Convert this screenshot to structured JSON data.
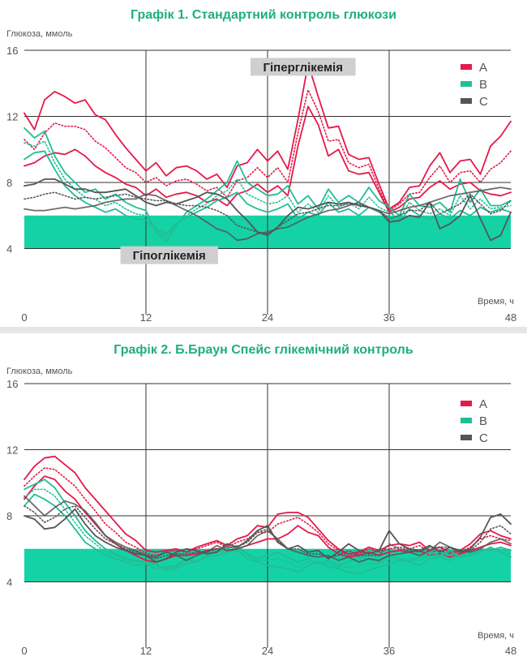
{
  "colors": {
    "A": "#e5194a",
    "B": "#1fbf95",
    "C": "#555555",
    "target_band": "#14d2a6"
  },
  "chart_data": [
    {
      "type": "line",
      "title": "Графік 1. Стандартний контроль глюкози",
      "ylabel": "Глюкоза, ммоль",
      "xlabel": "Время, ч",
      "xlim": [
        0,
        48
      ],
      "ylim": [
        0,
        16
      ],
      "xticks": [
        "0",
        "12",
        "24",
        "36",
        "48"
      ],
      "yticks": [
        "16",
        "12",
        "8",
        "4"
      ],
      "grid": true,
      "legend_position": "top-right",
      "legend": [
        "A",
        "B",
        "C"
      ],
      "target_band": [
        4,
        6
      ],
      "annotations": [
        {
          "text": "Гіперглікемія",
          "x": 27.5,
          "y": 15
        },
        {
          "text": "Гіпоглікемія",
          "x": 14.3,
          "y": 3.6
        }
      ],
      "x": [
        0,
        1,
        2,
        3,
        4,
        5,
        6,
        7,
        8,
        9,
        10,
        11,
        12,
        13,
        14,
        15,
        16,
        17,
        18,
        19,
        20,
        21,
        22,
        23,
        24,
        25,
        26,
        27,
        28,
        29,
        30,
        31,
        32,
        33,
        34,
        35,
        36,
        37,
        38,
        39,
        40,
        41,
        42,
        43,
        44,
        45,
        46,
        47,
        48
      ],
      "series": [
        {
          "group": "A",
          "style": "solid",
          "values": [
            12.2,
            11.2,
            13.0,
            13.5,
            13.2,
            12.8,
            13.0,
            12.1,
            11.8,
            10.9,
            10.1,
            9.4,
            8.7,
            9.2,
            8.4,
            8.9,
            9.0,
            8.7,
            8.2,
            8.5,
            7.7,
            9.0,
            9.2,
            10.0,
            9.3,
            9.9,
            8.8,
            11.8,
            15.2,
            13.2,
            11.3,
            11.4,
            9.7,
            9.4,
            9.5,
            7.9,
            6.4,
            6.8,
            7.7,
            7.8,
            9.0,
            9.8,
            8.6,
            9.3,
            9.4,
            8.5,
            10.2,
            10.8,
            11.7
          ]
        },
        {
          "group": "A",
          "style": "solid",
          "values": [
            9.0,
            9.2,
            9.6,
            9.8,
            9.7,
            10.0,
            9.6,
            9.0,
            8.6,
            8.3,
            7.9,
            7.7,
            7.2,
            7.6,
            7.1,
            7.3,
            7.4,
            7.2,
            6.8,
            7.0,
            6.6,
            7.3,
            7.5,
            7.9,
            7.4,
            7.8,
            7.2,
            10.2,
            12.6,
            11.5,
            9.6,
            10.0,
            8.7,
            8.5,
            8.6,
            7.4,
            6.2,
            6.5,
            7.0,
            7.1,
            7.7,
            8.1,
            7.6,
            7.9,
            8.0,
            7.5,
            7.3,
            7.2,
            7.4
          ]
        },
        {
          "group": "A",
          "style": "dotted",
          "values": [
            10.6,
            10.0,
            11.0,
            11.6,
            11.4,
            11.4,
            11.2,
            10.5,
            10.1,
            9.5,
            8.9,
            8.6,
            8.0,
            8.3,
            7.8,
            8.1,
            8.2,
            7.9,
            7.5,
            7.7,
            7.1,
            8.1,
            8.3,
            8.9,
            8.3,
            8.9,
            8.0,
            11.0,
            13.6,
            12.3,
            10.5,
            10.6,
            9.2,
            8.9,
            9.1,
            7.6,
            6.3,
            6.7,
            7.3,
            7.4,
            8.3,
            9.0,
            8.0,
            8.6,
            8.7,
            8.0,
            8.8,
            9.2,
            9.9
          ]
        },
        {
          "group": "B",
          "style": "solid",
          "values": [
            11.3,
            10.7,
            11.1,
            9.6,
            8.6,
            8.0,
            7.4,
            7.6,
            7.0,
            7.3,
            6.8,
            6.5,
            6.3,
            5.0,
            4.4,
            5.4,
            6.2,
            6.6,
            7.0,
            7.5,
            8.0,
            9.3,
            8.0,
            7.6,
            7.2,
            7.3,
            7.8,
            6.7,
            7.2,
            6.4,
            7.6,
            6.8,
            7.2,
            6.8,
            7.7,
            6.9,
            6.5,
            6.0,
            7.3,
            6.6,
            6.5,
            6.8,
            6.2,
            8.2,
            6.8,
            7.6,
            6.6,
            6.6,
            6.9
          ]
        },
        {
          "group": "B",
          "style": "solid",
          "values": [
            9.4,
            9.8,
            9.9,
            8.8,
            7.8,
            7.2,
            6.8,
            6.5,
            6.2,
            6.4,
            6.0,
            5.8,
            5.7,
            5.2,
            4.9,
            5.5,
            5.9,
            6.2,
            6.5,
            6.9,
            7.1,
            7.4,
            6.7,
            6.4,
            6.2,
            6.4,
            6.7,
            5.8,
            6.2,
            6.0,
            6.8,
            6.2,
            6.4,
            6.0,
            6.5,
            6.2,
            5.9,
            5.6,
            6.4,
            6.0,
            5.8,
            6.1,
            5.8,
            6.3,
            6.0,
            6.5,
            6.2,
            6.4,
            6.2
          ]
        },
        {
          "group": "B",
          "style": "dotted",
          "values": [
            10.4,
            10.2,
            10.5,
            9.2,
            8.2,
            7.6,
            7.1,
            7.0,
            6.6,
            6.8,
            6.4,
            6.1,
            6.0,
            5.1,
            4.7,
            5.4,
            6.0,
            6.4,
            6.7,
            7.2,
            7.5,
            8.2,
            7.3,
            7.0,
            6.7,
            6.8,
            7.2,
            6.2,
            6.7,
            6.2,
            7.2,
            6.5,
            6.8,
            6.4,
            7.1,
            6.5,
            6.2,
            5.8,
            6.8,
            6.3,
            6.1,
            6.4,
            6.0,
            7.2,
            6.4,
            7.0,
            6.4,
            6.5,
            6.6
          ]
        },
        {
          "group": "C",
          "style": "solid",
          "values": [
            7.8,
            7.9,
            8.2,
            8.2,
            7.9,
            7.6,
            7.6,
            7.4,
            7.4,
            7.5,
            7.6,
            7.2,
            6.8,
            6.6,
            6.8,
            6.7,
            6.9,
            7.1,
            7.4,
            7.3,
            7.0,
            6.3,
            5.7,
            5.0,
            4.8,
            5.3,
            6.0,
            6.5,
            6.4,
            6.6,
            6.8,
            6.7,
            6.8,
            6.6,
            6.5,
            6.3,
            5.6,
            5.7,
            6.0,
            5.9,
            6.8,
            5.2,
            5.5,
            6.0,
            7.2,
            5.8,
            4.5,
            4.8,
            6.2
          ]
        },
        {
          "group": "C",
          "style": "solid",
          "values": [
            6.4,
            6.3,
            6.3,
            6.4,
            6.5,
            6.4,
            6.5,
            6.6,
            6.8,
            6.9,
            7.0,
            7.0,
            7.3,
            7.2,
            6.9,
            6.6,
            6.3,
            6.0,
            5.6,
            5.2,
            5.0,
            4.5,
            4.6,
            4.9,
            5.0,
            5.2,
            5.3,
            5.6,
            5.9,
            6.1,
            6.3,
            6.4,
            6.6,
            6.8,
            6.5,
            6.3,
            6.1,
            6.3,
            6.5,
            6.6,
            6.8,
            7.0,
            7.2,
            7.3,
            7.4,
            7.5,
            7.6,
            7.7,
            7.6
          ]
        },
        {
          "group": "C",
          "style": "dotted",
          "values": [
            7.0,
            7.1,
            7.3,
            7.4,
            7.2,
            7.0,
            7.1,
            7.0,
            7.1,
            7.2,
            7.3,
            7.1,
            7.0,
            6.9,
            6.9,
            6.7,
            6.6,
            6.6,
            6.5,
            6.3,
            6.0,
            5.4,
            5.2,
            5.0,
            4.9,
            5.3,
            5.7,
            6.1,
            6.2,
            6.4,
            6.6,
            6.6,
            6.7,
            6.7,
            6.5,
            6.3,
            5.8,
            6.0,
            6.3,
            6.3,
            6.8,
            6.1,
            6.4,
            6.7,
            7.3,
            6.7,
            6.1,
            6.3,
            6.9
          ]
        }
      ]
    },
    {
      "type": "line",
      "title": "Графік 2. Б.Браун Спейс глікемічний контроль",
      "ylabel": "Глюкоза, ммоль",
      "xlabel": "Время, ч",
      "xlim": [
        0,
        48
      ],
      "ylim": [
        0,
        16
      ],
      "xticks": [
        "0",
        "12",
        "24",
        "36",
        "48"
      ],
      "yticks": [
        "16",
        "12",
        "8",
        "4"
      ],
      "grid": true,
      "legend_position": "top-right",
      "legend": [
        "A",
        "B",
        "C"
      ],
      "target_band": [
        4,
        6
      ],
      "x": [
        0,
        1,
        2,
        3,
        4,
        5,
        6,
        7,
        8,
        9,
        10,
        11,
        12,
        13,
        14,
        15,
        16,
        17,
        18,
        19,
        20,
        21,
        22,
        23,
        24,
        25,
        26,
        27,
        28,
        29,
        30,
        31,
        32,
        33,
        34,
        35,
        36,
        37,
        38,
        39,
        40,
        41,
        42,
        43,
        44,
        45,
        46,
        47,
        48
      ],
      "series": [
        {
          "group": "A",
          "style": "solid",
          "values": [
            10.2,
            11.0,
            11.5,
            11.6,
            11.1,
            10.6,
            9.7,
            9.0,
            8.3,
            7.6,
            6.9,
            6.5,
            5.9,
            5.8,
            5.9,
            6.0,
            5.8,
            6.1,
            6.3,
            6.5,
            6.2,
            6.6,
            6.8,
            7.4,
            7.3,
            8.1,
            8.2,
            8.2,
            7.9,
            7.2,
            6.5,
            6.0,
            5.7,
            5.8,
            6.1,
            5.9,
            6.2,
            6.3,
            6.2,
            6.4,
            5.9,
            6.1,
            5.8,
            5.9,
            6.3,
            6.9,
            7.1,
            6.8,
            6.6
          ]
        },
        {
          "group": "A",
          "style": "solid",
          "values": [
            9.0,
            9.8,
            10.4,
            10.2,
            9.5,
            9.0,
            8.2,
            7.5,
            6.8,
            6.3,
            5.9,
            5.6,
            5.3,
            5.2,
            5.4,
            5.6,
            5.6,
            5.7,
            5.9,
            6.0,
            5.9,
            6.0,
            6.2,
            6.4,
            6.6,
            6.6,
            6.9,
            7.4,
            7.0,
            6.8,
            6.1,
            5.7,
            5.5,
            5.6,
            5.8,
            5.6,
            5.8,
            5.9,
            5.8,
            5.9,
            5.6,
            5.7,
            5.5,
            5.7,
            5.9,
            6.1,
            6.3,
            6.4,
            6.2
          ]
        },
        {
          "group": "A",
          "style": "dotted",
          "values": [
            9.8,
            10.4,
            10.9,
            10.8,
            10.3,
            9.8,
            9.0,
            8.3,
            7.5,
            7.0,
            6.4,
            6.1,
            5.7,
            5.6,
            5.8,
            5.9,
            5.8,
            6.0,
            6.2,
            6.4,
            6.1,
            6.4,
            6.6,
            7.0,
            7.0,
            7.5,
            7.7,
            7.9,
            7.5,
            7.0,
            6.3,
            5.9,
            5.6,
            5.7,
            6.0,
            5.8,
            6.0,
            6.1,
            6.0,
            6.2,
            5.8,
            5.9,
            5.7,
            5.8,
            6.1,
            6.6,
            6.8,
            6.6,
            6.5
          ]
        },
        {
          "group": "B",
          "style": "solid",
          "values": [
            8.6,
            9.3,
            9.0,
            8.6,
            8.0,
            7.2,
            6.4,
            6.0,
            5.6,
            5.4,
            5.2,
            5.0,
            5.1,
            4.8,
            4.9,
            5.0,
            5.4,
            5.2,
            5.6,
            5.9,
            6.0,
            6.2,
            5.7,
            5.4,
            5.6,
            5.8,
            5.5,
            5.2,
            5.4,
            5.1,
            5.3,
            5.0,
            5.2,
            5.5,
            5.4,
            5.2,
            5.6,
            5.4,
            5.3,
            5.5,
            5.8,
            5.6,
            5.9,
            5.5,
            5.6,
            5.8,
            6.1,
            5.8,
            5.5
          ]
        },
        {
          "group": "B",
          "style": "solid",
          "values": [
            9.6,
            9.9,
            10.2,
            9.7,
            8.8,
            8.0,
            7.1,
            6.5,
            6.0,
            5.7,
            5.4,
            5.3,
            5.2,
            5.1,
            4.7,
            4.8,
            5.1,
            5.2,
            5.5,
            5.6,
            5.8,
            5.9,
            5.4,
            5.2,
            5.0,
            4.9,
            4.8,
            4.6,
            5.0,
            5.2,
            4.9,
            4.8,
            4.6,
            4.5,
            4.7,
            4.9,
            5.1,
            5.3,
            5.2,
            5.0,
            5.4,
            5.5,
            5.3,
            5.6,
            5.8,
            6.0,
            5.9,
            6.1,
            5.9
          ]
        },
        {
          "group": "B",
          "style": "dotted",
          "values": [
            9.1,
            9.6,
            9.6,
            9.2,
            8.4,
            7.6,
            6.8,
            6.3,
            5.8,
            5.6,
            5.3,
            5.2,
            5.2,
            5.0,
            4.8,
            4.9,
            5.3,
            5.2,
            5.6,
            5.8,
            5.9,
            6.1,
            5.6,
            5.3,
            5.3,
            5.4,
            5.2,
            4.9,
            5.2,
            5.2,
            5.1,
            4.9,
            4.9,
            5.0,
            5.1,
            5.1,
            5.4,
            5.4,
            5.3,
            5.3,
            5.6,
            5.6,
            5.6,
            5.6,
            5.7,
            5.9,
            6.0,
            6.0,
            5.7
          ]
        },
        {
          "group": "C",
          "style": "solid",
          "values": [
            8.0,
            7.8,
            7.2,
            7.3,
            7.8,
            8.4,
            7.5,
            6.8,
            6.4,
            6.1,
            5.9,
            5.7,
            5.6,
            5.2,
            5.4,
            5.8,
            6.0,
            5.9,
            5.7,
            5.8,
            6.3,
            6.1,
            6.5,
            7.1,
            7.4,
            6.4,
            6.0,
            6.2,
            5.8,
            5.9,
            5.4,
            5.8,
            6.3,
            5.9,
            5.7,
            5.9,
            7.1,
            6.3,
            6.0,
            5.9,
            6.2,
            5.8,
            6.1,
            5.8,
            6.0,
            6.7,
            7.9,
            8.1,
            7.5
          ]
        },
        {
          "group": "C",
          "style": "solid",
          "values": [
            9.2,
            8.6,
            8.0,
            8.5,
            8.9,
            8.7,
            8.3,
            7.6,
            6.8,
            6.4,
            6.1,
            5.9,
            5.6,
            5.5,
            5.8,
            5.6,
            5.3,
            5.6,
            5.8,
            6.2,
            5.9,
            6.0,
            6.2,
            6.8,
            7.1,
            6.6,
            6.0,
            5.8,
            5.6,
            5.5,
            5.6,
            5.3,
            5.5,
            5.2,
            5.4,
            5.3,
            5.6,
            5.7,
            5.8,
            5.6,
            5.9,
            6.4,
            6.1,
            5.9,
            5.8,
            6.0,
            6.4,
            6.6,
            6.3
          ]
        },
        {
          "group": "C",
          "style": "dotted",
          "values": [
            8.6,
            8.2,
            7.6,
            7.9,
            8.4,
            8.6,
            7.9,
            7.2,
            6.6,
            6.3,
            6.0,
            5.8,
            5.6,
            5.4,
            5.6,
            5.7,
            5.7,
            5.8,
            5.8,
            6.0,
            6.1,
            6.1,
            6.4,
            7.0,
            7.2,
            6.5,
            6.0,
            6.0,
            5.7,
            5.7,
            5.5,
            5.6,
            5.9,
            5.6,
            5.6,
            5.6,
            6.3,
            6.0,
            5.9,
            5.8,
            6.1,
            6.1,
            6.1,
            5.9,
            5.9,
            6.4,
            7.2,
            7.4,
            6.9
          ]
        }
      ]
    }
  ]
}
